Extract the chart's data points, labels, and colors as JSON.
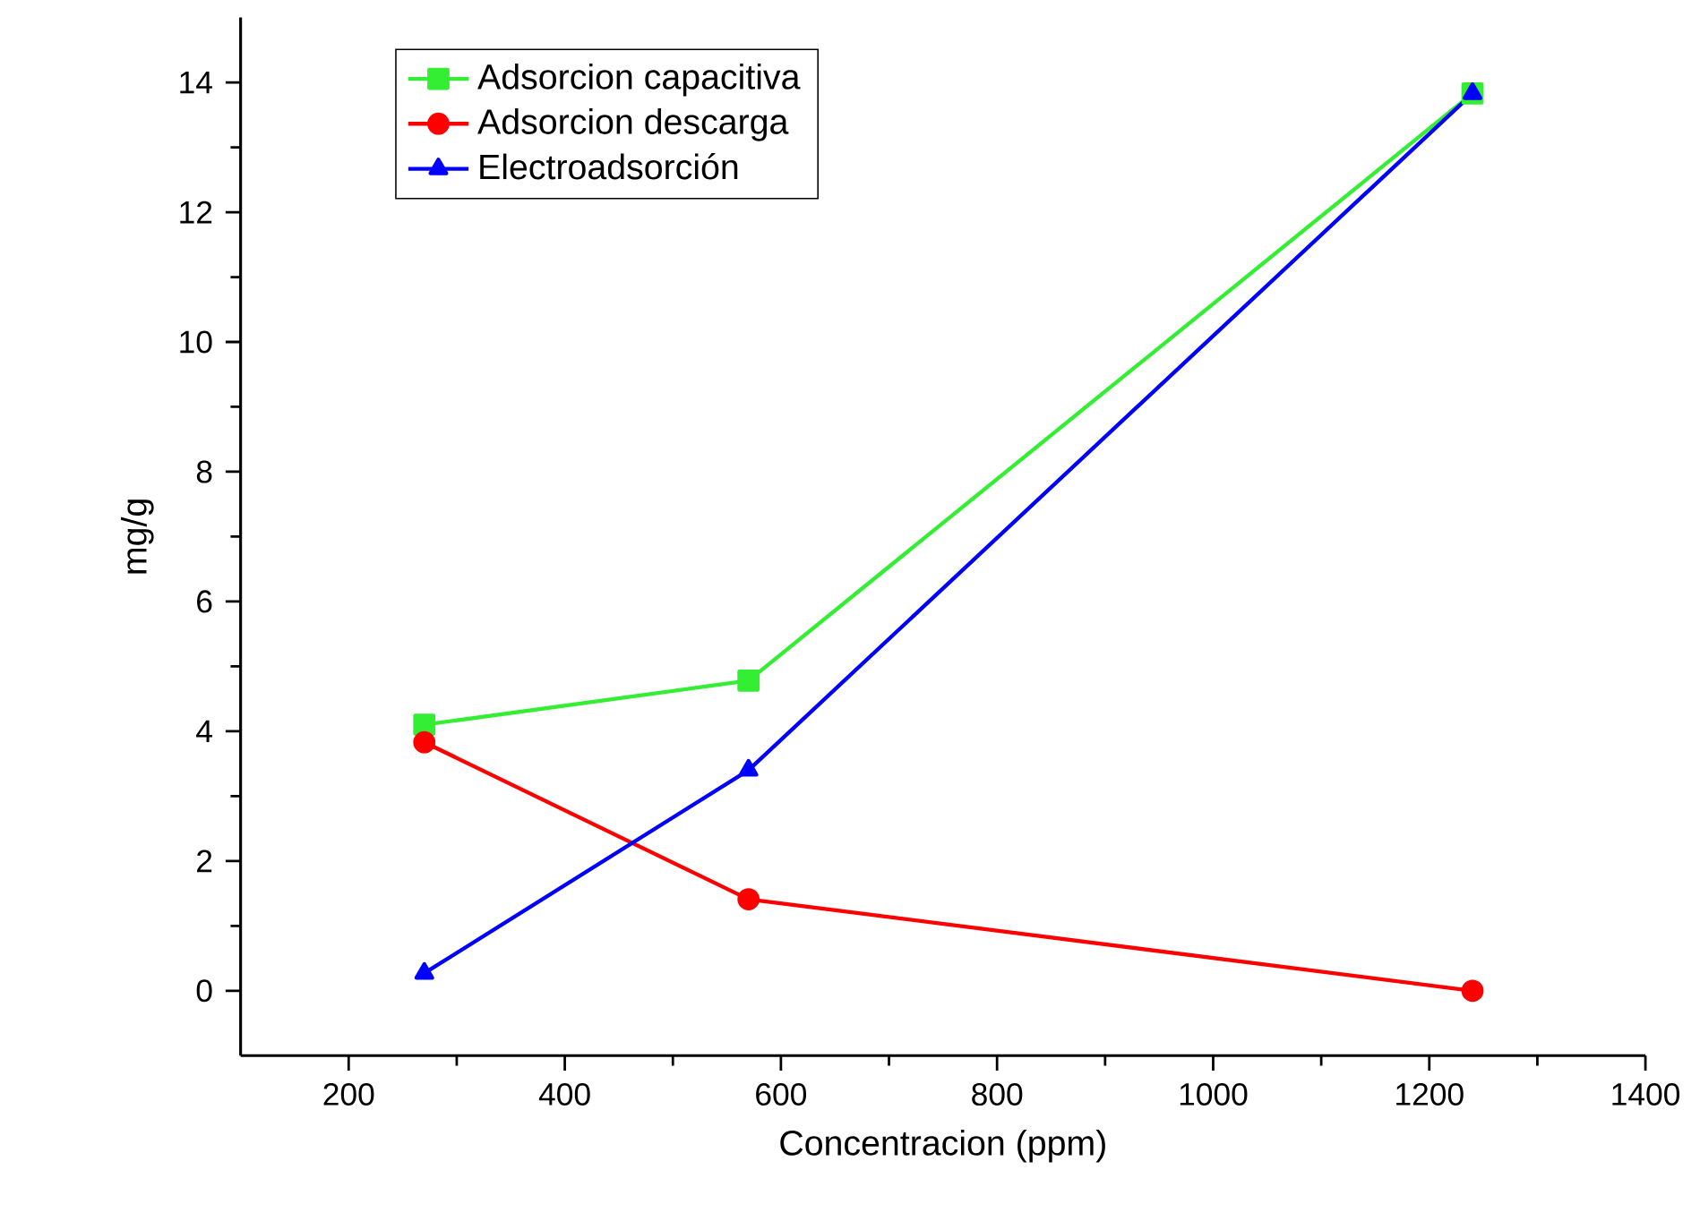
{
  "chart_data": {
    "type": "line",
    "xlabel": "Concentracion (ppm)",
    "ylabel": "mg/g",
    "x": [
      270,
      570,
      1240
    ],
    "series": [
      {
        "name": "Adsorcion capacitiva",
        "color": "#33ee33",
        "marker": "square",
        "values": [
          4.1,
          4.78,
          13.83
        ]
      },
      {
        "name": "Adsorcion descarga",
        "color": "#ff0000",
        "marker": "circle",
        "values": [
          3.83,
          1.41,
          0
        ]
      },
      {
        "name": "Electroadsorción",
        "color": "#0000ff",
        "marker": "triangle",
        "values": [
          0.27,
          3.4,
          13.83
        ]
      }
    ],
    "xlim": [
      100,
      1400
    ],
    "xticks": [
      200,
      400,
      600,
      800,
      1000,
      1200,
      1400
    ],
    "ylim": [
      -1,
      15
    ],
    "yticks": [
      0,
      2,
      4,
      6,
      8,
      10,
      12,
      14
    ],
    "legend": "top left",
    "grid": false,
    "line_style": "solid"
  }
}
